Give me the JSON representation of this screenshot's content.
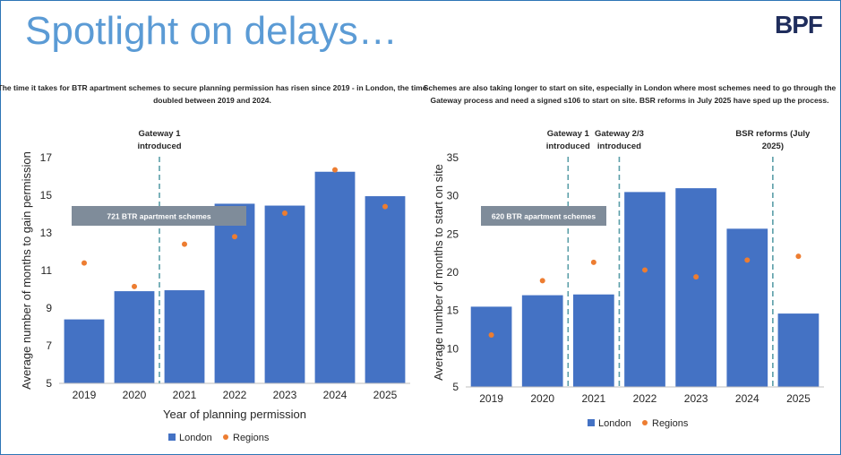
{
  "page": {
    "title": "Spotlight on delays…",
    "logo": "BPF"
  },
  "colors": {
    "london": "#4472c4",
    "regions": "#ed7d31",
    "title": "#5b9bd5",
    "marker_line": "#5a9ea8",
    "badge": "#7f8c9a"
  },
  "chart_data": [
    {
      "type": "bar",
      "subtitle": "The time it takes for BTR apartment schemes to secure planning permission has risen since 2019 - in London, the time doubled between 2019 and 2024.",
      "categories": [
        "2019",
        "2020",
        "2021",
        "2022",
        "2023",
        "2024",
        "2025"
      ],
      "series": [
        {
          "name": "London",
          "kind": "bar",
          "values": [
            8.4,
            9.9,
            9.95,
            14.55,
            14.45,
            16.25,
            14.95
          ]
        },
        {
          "name": "Regions",
          "kind": "point",
          "values": [
            11.4,
            10.15,
            12.4,
            12.8,
            14.05,
            16.35,
            14.4
          ]
        }
      ],
      "xlabel": "Year of planning permission",
      "ylabel": "Average number of months to gain permission",
      "ylim": [
        5,
        17
      ],
      "yticks": [
        "17",
        "15",
        "13",
        "11",
        "9",
        "7",
        "5"
      ],
      "markers": [
        {
          "between": [
            "2020",
            "2021"
          ],
          "label_lines": [
            "Gateway 1",
            "introduced"
          ]
        }
      ],
      "badge": "721 BTR apartment schemes",
      "legend": [
        "London",
        "Regions"
      ],
      "legend_position": "bottom",
      "grid": false
    },
    {
      "type": "bar",
      "subtitle": "Schemes are also taking longer to start on site, especially in London where most schemes need to go through the Gateway process and need a signed s106 to start on site. BSR reforms in July 2025 have sped up the process.",
      "categories": [
        "2019",
        "2020",
        "2021",
        "2022",
        "2023",
        "2024",
        "2025"
      ],
      "series": [
        {
          "name": "London",
          "kind": "bar",
          "values": [
            15.5,
            17.0,
            17.1,
            30.5,
            31.0,
            25.7,
            14.6
          ]
        },
        {
          "name": "Regions",
          "kind": "point",
          "values": [
            11.8,
            18.9,
            21.3,
            20.3,
            19.4,
            21.6,
            22.1
          ]
        }
      ],
      "xlabel": "",
      "ylabel": "Average number of months to start on site",
      "ylim": [
        5,
        35
      ],
      "yticks": [
        "35",
        "30",
        "25",
        "20",
        "15",
        "10",
        "5"
      ],
      "markers": [
        {
          "between": [
            "2020",
            "2021"
          ],
          "label_lines": [
            "Gateway 1",
            "introduced"
          ]
        },
        {
          "between": [
            "2021",
            "2022"
          ],
          "label_lines": [
            "Gateway 2/3",
            "introduced"
          ]
        },
        {
          "between": [
            "2024",
            "2025"
          ],
          "label_lines": [
            "BSR reforms (July",
            "2025)"
          ]
        }
      ],
      "badge": "620 BTR apartment schemes",
      "legend": [
        "London",
        "Regions"
      ],
      "legend_position": "bottom",
      "grid": false
    }
  ]
}
